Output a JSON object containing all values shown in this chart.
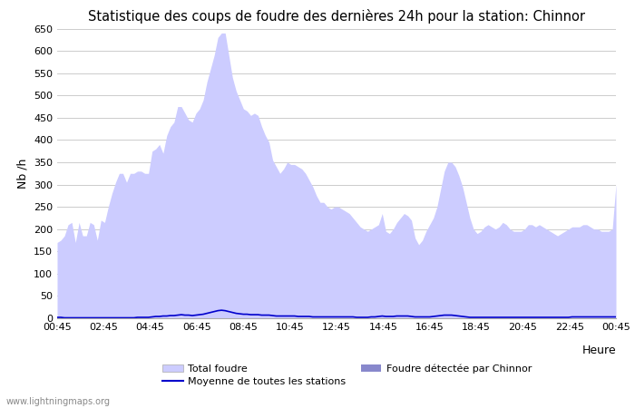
{
  "title": "Statistique des coups de foudre des dernières 24h pour la station: Chinnor",
  "xlabel": "Heure",
  "ylabel": "Nb /h",
  "ylim": [
    0,
    650
  ],
  "yticks": [
    0,
    50,
    100,
    150,
    200,
    250,
    300,
    350,
    400,
    450,
    500,
    550,
    600,
    650
  ],
  "x_labels": [
    "00:45",
    "02:45",
    "04:45",
    "06:45",
    "08:45",
    "10:45",
    "12:45",
    "14:45",
    "16:45",
    "18:45",
    "20:45",
    "22:45",
    "00:45"
  ],
  "total_foudre_color": "#ccccff",
  "detected_color": "#8888cc",
  "moyenne_color": "#0000cc",
  "background_color": "#ffffff",
  "grid_color": "#cccccc",
  "watermark": "www.lightningmaps.org",
  "total_foudre": [
    170,
    175,
    185,
    210,
    215,
    170,
    215,
    185,
    185,
    215,
    210,
    175,
    220,
    215,
    250,
    280,
    305,
    325,
    325,
    305,
    325,
    325,
    330,
    330,
    325,
    325,
    375,
    380,
    390,
    370,
    410,
    430,
    440,
    475,
    475,
    460,
    445,
    440,
    460,
    470,
    490,
    530,
    560,
    590,
    630,
    640,
    640,
    590,
    540,
    510,
    490,
    470,
    465,
    455,
    460,
    455,
    430,
    410,
    395,
    355,
    340,
    325,
    335,
    350,
    345,
    345,
    340,
    335,
    325,
    310,
    295,
    275,
    260,
    260,
    250,
    245,
    250,
    250,
    245,
    240,
    235,
    225,
    215,
    205,
    200,
    195,
    200,
    205,
    210,
    235,
    195,
    190,
    200,
    215,
    225,
    235,
    230,
    220,
    180,
    165,
    175,
    195,
    210,
    225,
    250,
    290,
    330,
    350,
    350,
    340,
    320,
    295,
    260,
    225,
    200,
    190,
    195,
    205,
    210,
    205,
    200,
    205,
    215,
    210,
    200,
    195,
    195,
    195,
    200,
    210,
    210,
    205,
    210,
    205,
    200,
    195,
    190,
    185,
    190,
    195,
    200,
    205,
    205,
    205,
    210,
    210,
    205,
    200,
    200,
    195,
    195,
    195,
    200,
    300
  ],
  "detected_foudre": [
    0,
    0,
    0,
    0,
    0,
    0,
    0,
    0,
    0,
    0,
    0,
    0,
    0,
    0,
    0,
    0,
    0,
    0,
    0,
    0,
    0,
    0,
    0,
    0,
    0,
    0,
    0,
    0,
    0,
    0,
    0,
    0,
    0,
    0,
    0,
    0,
    0,
    0,
    0,
    0,
    0,
    0,
    0,
    0,
    0,
    0,
    0,
    0,
    0,
    0,
    0,
    0,
    0,
    0,
    0,
    0,
    0,
    0,
    0,
    0,
    0,
    0,
    0,
    0,
    0,
    0,
    0,
    0,
    0,
    0,
    0,
    0,
    0,
    0,
    0,
    0,
    0,
    0,
    0,
    0,
    0,
    0,
    0,
    0,
    0,
    0,
    0,
    0,
    0,
    0,
    0,
    0,
    0,
    0,
    0,
    0,
    0,
    0,
    0,
    0,
    0,
    0,
    0,
    0,
    0,
    0,
    0,
    0,
    0,
    0,
    0,
    0,
    0,
    0,
    0,
    0,
    0,
    0,
    0,
    0,
    0,
    0,
    0,
    0,
    0,
    0,
    0,
    0,
    0,
    0,
    0,
    0,
    0,
    0,
    0,
    0,
    0,
    0,
    0,
    0,
    0,
    0,
    0,
    0,
    0,
    0,
    0,
    0,
    0,
    0,
    0,
    0,
    0,
    0
  ],
  "moyenne": [
    2,
    2,
    1,
    1,
    1,
    1,
    1,
    1,
    1,
    1,
    1,
    1,
    1,
    1,
    1,
    1,
    1,
    1,
    1,
    1,
    1,
    1,
    2,
    2,
    2,
    2,
    3,
    4,
    4,
    5,
    5,
    6,
    6,
    7,
    8,
    7,
    7,
    6,
    7,
    8,
    9,
    11,
    13,
    15,
    17,
    18,
    17,
    15,
    13,
    11,
    10,
    9,
    9,
    8,
    8,
    8,
    7,
    7,
    7,
    6,
    5,
    5,
    5,
    5,
    5,
    5,
    4,
    4,
    4,
    4,
    3,
    3,
    3,
    3,
    3,
    3,
    3,
    3,
    3,
    3,
    3,
    3,
    2,
    2,
    2,
    2,
    3,
    3,
    4,
    5,
    4,
    4,
    4,
    5,
    5,
    5,
    5,
    4,
    3,
    3,
    3,
    3,
    3,
    4,
    5,
    6,
    7,
    7,
    7,
    6,
    5,
    4,
    3,
    2,
    2,
    2,
    2,
    2,
    2,
    2,
    2,
    2,
    2,
    2,
    2,
    2,
    2,
    2,
    2,
    2,
    2,
    2,
    2,
    2,
    2,
    2,
    2,
    2,
    2,
    2,
    2,
    3,
    3,
    3,
    3,
    3,
    3,
    3,
    3,
    3,
    3,
    3,
    3,
    3
  ]
}
